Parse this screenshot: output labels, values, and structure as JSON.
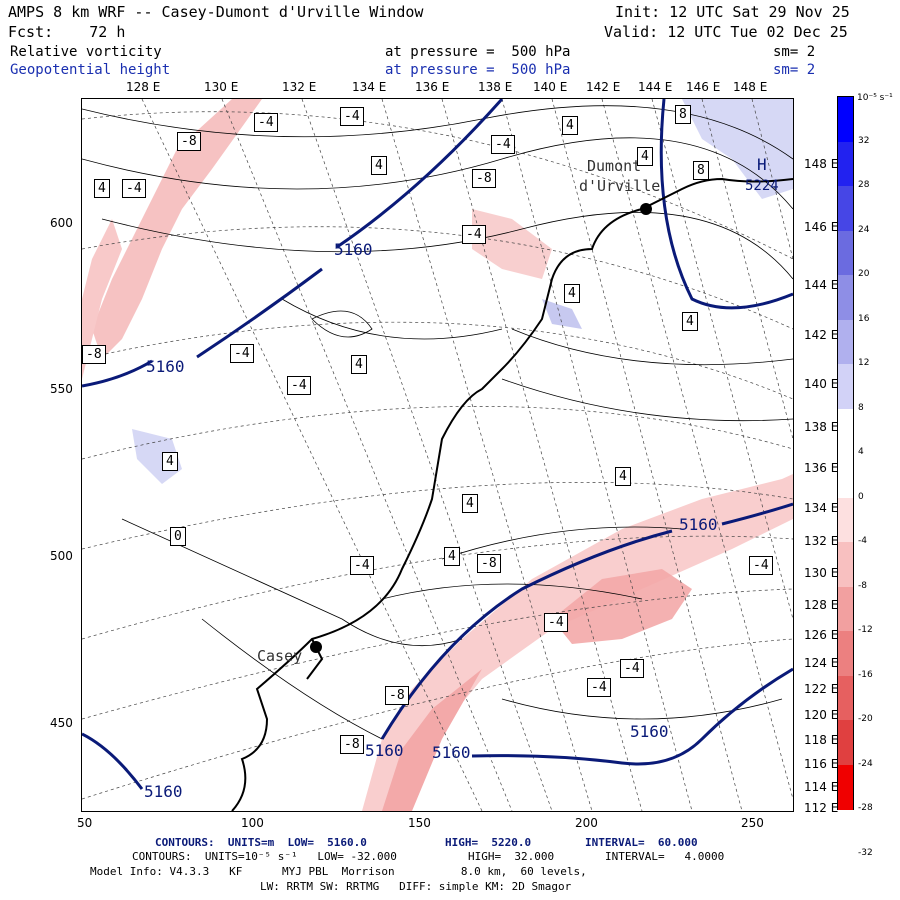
{
  "header": {
    "title": "AMPS 8 km WRF -- Casey-Dumont d'Urville Window",
    "init": "Init: 12 UTC Sat 29 Nov 25",
    "fcst": "Fcst:    72 h",
    "valid": "Valid: 12 UTC Tue 02 Dec 25",
    "field1": "Relative vorticity",
    "field1_level": "at pressure =  500 hPa",
    "field1_sm": "sm= 2",
    "field2": "Geopotential height",
    "field2_level": "at pressure =  500 hPa",
    "field2_sm": "sm= 2"
  },
  "lon_labels": [
    "128 E",
    "130 E",
    "132 E",
    "134 E",
    "136 E",
    "138 E",
    "140 E",
    "142 E",
    "144 E",
    "146 E",
    "148 E"
  ],
  "lat_labels": [
    "148 E",
    "146 E",
    "144 E",
    "142 E",
    "140 E",
    "138 E",
    "136 E",
    "134 E",
    "132 E",
    "130 E",
    "128 E",
    "126 E",
    "124 E",
    "122 E",
    "120 E",
    "118 E",
    "116 E",
    "114 E",
    "112 E"
  ],
  "y_ticks": [
    "600",
    "550",
    "500",
    "450"
  ],
  "x_ticks": [
    "50",
    "100",
    "150",
    "200",
    "250"
  ],
  "colorbar": {
    "unit": "10⁻⁵ s⁻¹",
    "labels": [
      "32",
      "28",
      "24",
      "20",
      "16",
      "12",
      "8",
      "4",
      "0",
      "-4",
      "-8",
      "-12",
      "-16",
      "-20",
      "-24",
      "-28",
      "-32"
    ],
    "colors": [
      "#0000ff",
      "#2222f0",
      "#4646e6",
      "#6b6be0",
      "#8e8ee6",
      "#b0b0ee",
      "#d2d2f7",
      "#ffffff",
      "#ffffff",
      "#fde0e0",
      "#f8c0c0",
      "#f2a0a0",
      "#ec8080",
      "#e66060",
      "#e04040",
      "#f00000"
    ]
  },
  "stations": {
    "casey": "Casey",
    "dumont_1": "Dumont",
    "dumont_2": "d'Urville",
    "high_mark": "H",
    "high_value": "5224"
  },
  "height_labels": [
    "5160",
    "5160",
    "5160",
    "5160",
    "5160",
    "5160",
    "5160"
  ],
  "vort_labels": [
    "-4",
    "-8",
    "4",
    "-4",
    "4",
    "-4",
    "8",
    "4",
    "-4",
    "-8",
    "4",
    "8",
    "4",
    "-4",
    "-4",
    "4",
    "4",
    "-4",
    "4",
    "4",
    "0",
    "4",
    "4",
    "-4",
    "-8",
    "-4",
    "-8",
    "-4",
    "-4",
    "-8",
    "-4",
    "-8"
  ],
  "footer": {
    "line1_a": "CONTOURS:  UNITS=m  LOW=  5160.0",
    "line1_b": "HIGH=  5220.0",
    "line1_c": "INTERVAL=  60.000",
    "line2_a": "CONTOURS:  UNITS=10⁻⁵ s⁻¹   LOW= -32.000",
    "line2_b": "HIGH=  32.000",
    "line2_c": "INTERVAL=   4.0000",
    "line3": "Model Info: V4.3.3   KF      MYJ PBL  Morrison          8.0 km,  60 levels,",
    "line4": "LW: RRTM SW: RRTMG   DIFF: simple KM: 2D Smagor"
  }
}
